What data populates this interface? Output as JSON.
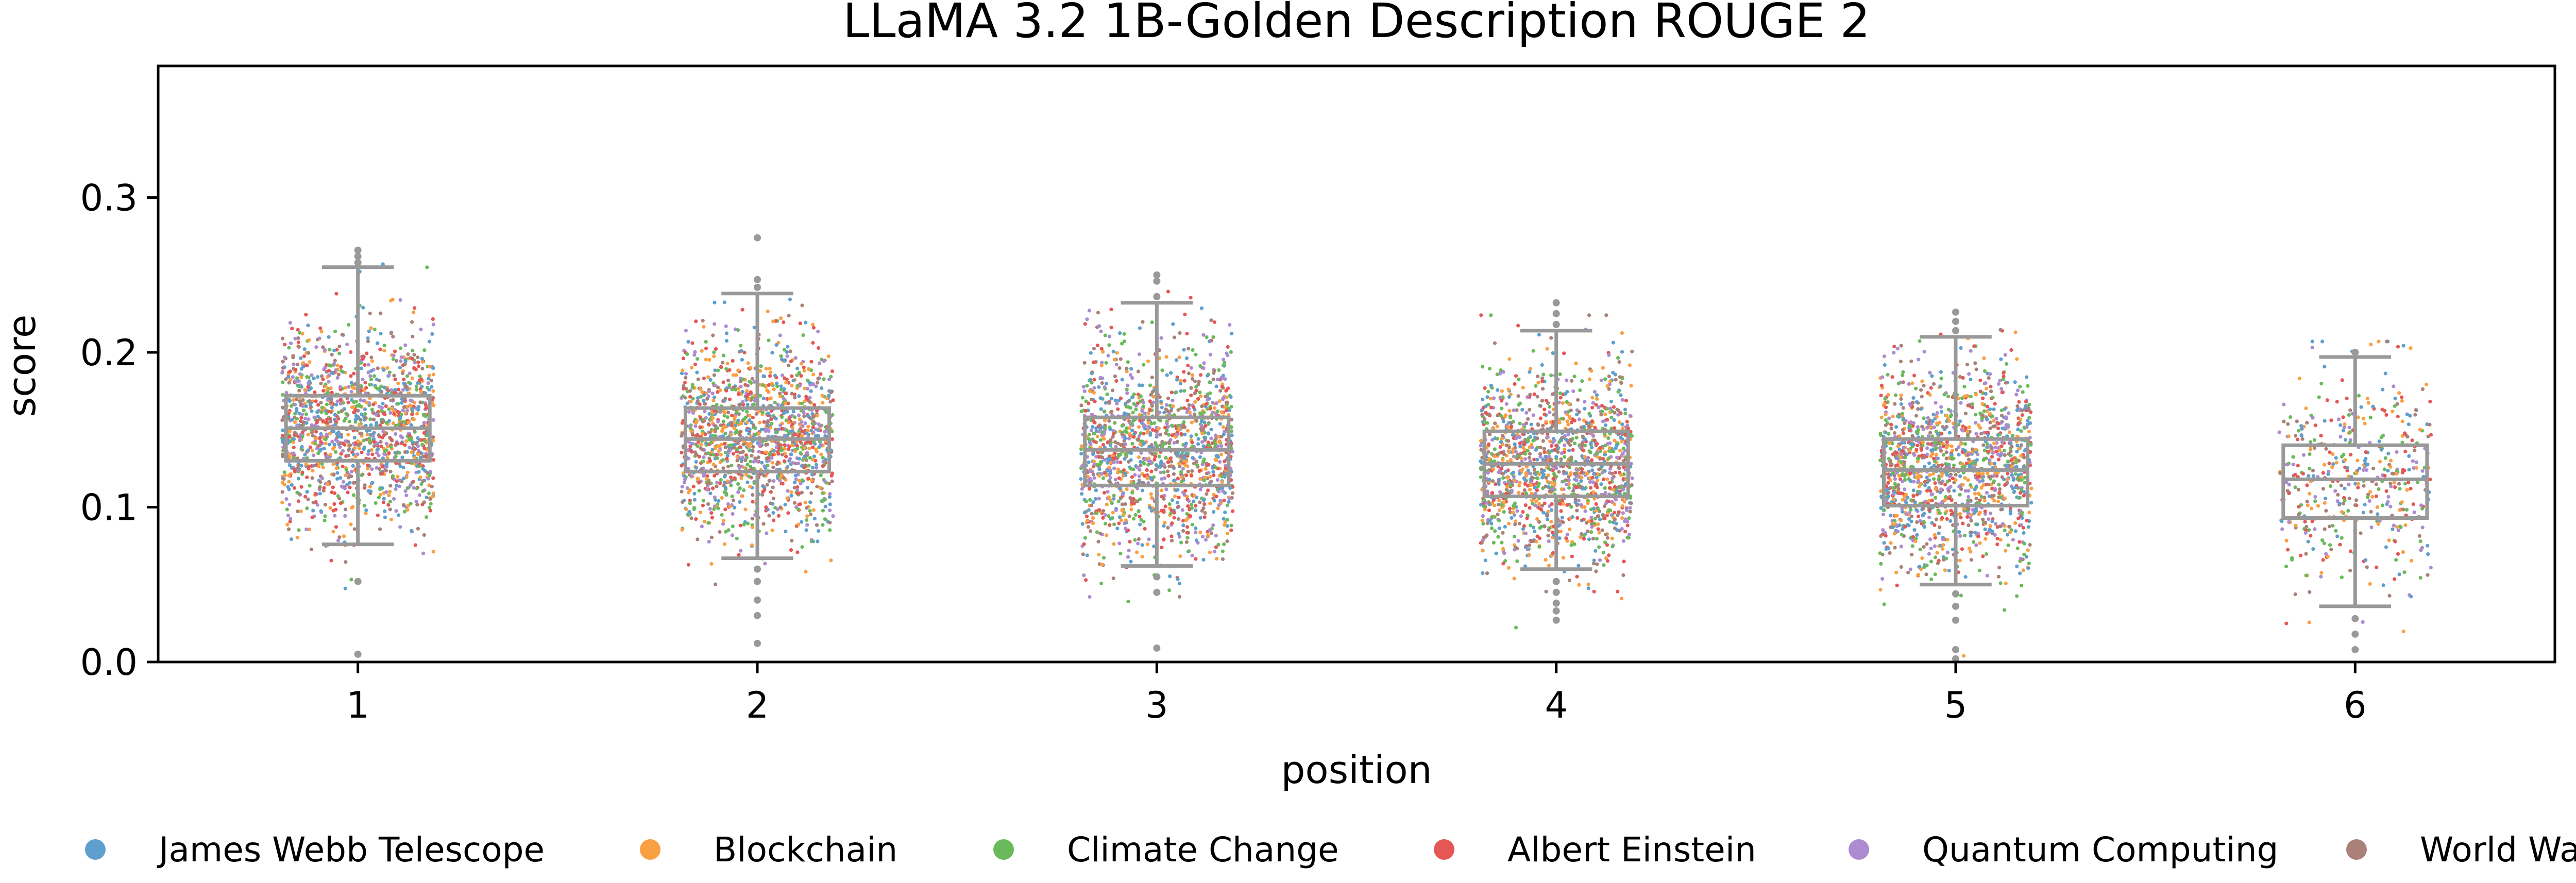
{
  "chart_data": {
    "type": "scatter",
    "title": "LLaMA 3.2 1B-Golden Description ROUGE 2",
    "xlabel": "position",
    "ylabel": "score",
    "ylim": [
      0.0,
      0.385
    ],
    "xlim": [
      0.5,
      6.5
    ],
    "yticks": [
      "0.0",
      "0.1",
      "0.2",
      "0.3"
    ],
    "categories": [
      "1",
      "2",
      "3",
      "4",
      "5",
      "6"
    ],
    "grid": false,
    "legend_position": "bottom",
    "points_per_category": [
      1400,
      1400,
      1400,
      1400,
      1400,
      450
    ],
    "boxplot": {
      "color": "#999999",
      "boxes": [
        {
          "position": 1,
          "whisker_low": 0.076,
          "q1": 0.13,
          "median": 0.151,
          "q3": 0.172,
          "whisker_high": 0.255,
          "outliers": [
            0.258,
            0.262,
            0.266,
            0.052,
            0.005
          ]
        },
        {
          "position": 2,
          "whisker_low": 0.067,
          "q1": 0.123,
          "median": 0.144,
          "q3": 0.164,
          "whisker_high": 0.238,
          "outliers": [
            0.242,
            0.247,
            0.274,
            0.06,
            0.052,
            0.04,
            0.03,
            0.012
          ]
        },
        {
          "position": 3,
          "whisker_low": 0.062,
          "q1": 0.114,
          "median": 0.137,
          "q3": 0.158,
          "whisker_high": 0.232,
          "outliers": [
            0.236,
            0.246,
            0.25,
            0.055,
            0.045,
            0.009
          ]
        },
        {
          "position": 4,
          "whisker_low": 0.06,
          "q1": 0.107,
          "median": 0.128,
          "q3": 0.149,
          "whisker_high": 0.214,
          "outliers": [
            0.218,
            0.225,
            0.232,
            0.052,
            0.045,
            0.038,
            0.033,
            0.027
          ]
        },
        {
          "position": 5,
          "whisker_low": 0.05,
          "q1": 0.101,
          "median": 0.124,
          "q3": 0.144,
          "whisker_high": 0.21,
          "outliers": [
            0.214,
            0.22,
            0.226,
            0.044,
            0.036,
            0.027,
            0.008,
            0.002
          ]
        },
        {
          "position": 6,
          "whisker_low": 0.036,
          "q1": 0.093,
          "median": 0.118,
          "q3": 0.14,
          "whisker_high": 0.197,
          "outliers": [
            0.2,
            0.028,
            0.018,
            0.008
          ]
        }
      ]
    },
    "series": [
      {
        "name": "James Webb Telescope",
        "color": "#5e9fcd"
      },
      {
        "name": "Blockchain",
        "color": "#f9a043"
      },
      {
        "name": "Climate Change",
        "color": "#6aba5c"
      },
      {
        "name": "Albert Einstein",
        "color": "#e45755"
      },
      {
        "name": "Quantum Computing",
        "color": "#ac8bd0"
      },
      {
        "name": "World War II",
        "color": "#a98178"
      }
    ]
  }
}
